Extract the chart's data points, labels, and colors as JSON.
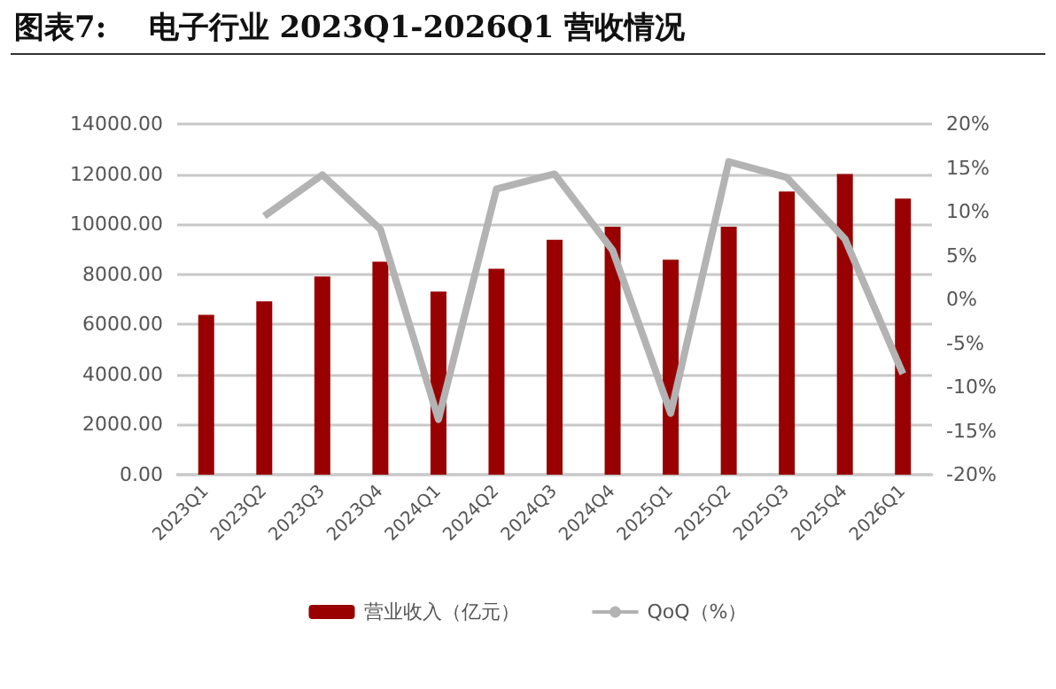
{
  "chart_data": {
    "type": "bar",
    "title": "图表7:    电子行业 2023Q1-2026Q1 营收情况",
    "categories": [
      "2023Q1",
      "2023Q2",
      "2023Q3",
      "2023Q4",
      "2024Q1",
      "2024Q2",
      "2024Q3",
      "2024Q4",
      "2025Q1",
      "2025Q2",
      "2025Q3",
      "2025Q4",
      "2026Q1"
    ],
    "series": [
      {
        "name": "营业收入（亿元）",
        "color": "#990000",
        "values": [
          6380,
          6920,
          7910,
          8500,
          7310,
          8220,
          9380,
          9900,
          8580,
          9900,
          11300,
          12000,
          11020
        ]
      },
      {
        "name": "QoQ（%）",
        "type": "line",
        "axis": "y2",
        "color": "#b3b3b3",
        "marker": "none",
        "values": [
          null,
          9.5,
          14.2,
          8.0,
          -13.7,
          12.6,
          14.3,
          5.6,
          -13.0,
          15.7,
          13.9,
          6.9,
          -8.5
        ]
      }
    ],
    "ylim": [
      0,
      14000
    ],
    "yticks": [
      {
        "value": 0,
        "label": "0.00"
      },
      {
        "value": 2000,
        "label": "2000.00"
      },
      {
        "value": 4000,
        "label": "4000.00"
      },
      {
        "value": 6000,
        "label": "6000.00"
      },
      {
        "value": 8000,
        "label": "8000.00"
      },
      {
        "value": 10000,
        "label": "10000.00"
      },
      {
        "value": 12000,
        "label": "12000.00"
      },
      {
        "value": 14000,
        "label": "14000.00"
      }
    ],
    "y2lim": [
      -20,
      20
    ],
    "y2ticks": [
      {
        "value": -20,
        "label": "-20%"
      },
      {
        "value": -15,
        "label": "-15%"
      },
      {
        "value": -10,
        "label": "-10%"
      },
      {
        "value": -5,
        "label": "-5%"
      },
      {
        "value": 0,
        "label": "0%"
      },
      {
        "value": 5,
        "label": "5%"
      },
      {
        "value": 10,
        "label": "10%"
      },
      {
        "value": 15,
        "label": "15%"
      },
      {
        "value": 20,
        "label": "20%"
      }
    ],
    "grid": "y",
    "legend": "bottom"
  }
}
